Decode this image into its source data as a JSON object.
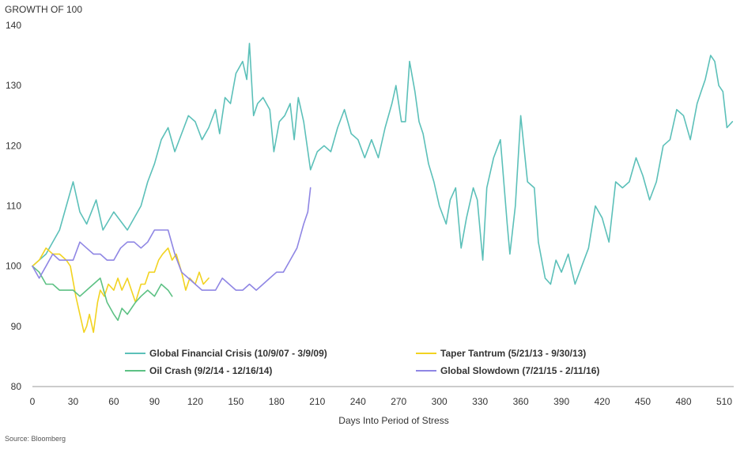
{
  "chart_data": {
    "type": "line",
    "title": "",
    "ylabel": "GROWTH OF 100",
    "xlabel": "Days Into Period of Stress",
    "source": "Source: Bloomberg",
    "xlim": [
      0,
      517
    ],
    "ylim": [
      80,
      140
    ],
    "x_ticks": [
      0,
      30,
      60,
      90,
      120,
      150,
      180,
      210,
      240,
      270,
      300,
      330,
      360,
      390,
      420,
      450,
      480,
      510
    ],
    "y_ticks": [
      80,
      90,
      100,
      110,
      120,
      130,
      140
    ],
    "grid": "none",
    "legend_position": "bottom-center",
    "series": [
      {
        "name": "Global Financial Crisis (10/9/07 - 3/9/09)",
        "color": "#5cc0b9",
        "x": [
          0,
          10,
          20,
          25,
          30,
          35,
          40,
          47,
          52,
          60,
          70,
          80,
          85,
          90,
          95,
          100,
          105,
          110,
          115,
          120,
          125,
          130,
          135,
          138,
          142,
          146,
          150,
          155,
          158,
          160,
          163,
          166,
          170,
          175,
          178,
          182,
          186,
          190,
          193,
          196,
          200,
          205,
          210,
          215,
          220,
          225,
          230,
          235,
          240,
          245,
          250,
          255,
          260,
          265,
          268,
          272,
          275,
          278,
          282,
          285,
          288,
          292,
          296,
          300,
          305,
          308,
          312,
          316,
          320,
          325,
          328,
          332,
          335,
          340,
          345,
          350,
          352,
          356,
          360,
          365,
          370,
          373,
          378,
          382,
          386,
          390,
          395,
          400,
          405,
          410,
          415,
          420,
          425,
          430,
          435,
          440,
          445,
          450,
          455,
          460,
          465,
          470,
          475,
          480,
          485,
          490,
          493,
          496,
          500,
          503,
          506,
          509,
          512,
          516
        ],
        "values": [
          100,
          102,
          106,
          110,
          114,
          109,
          107,
          111,
          106,
          109,
          106,
          110,
          114,
          117,
          121,
          123,
          119,
          122,
          125,
          124,
          121,
          123,
          126,
          122,
          128,
          127,
          132,
          134,
          131,
          137,
          125,
          127,
          128,
          126,
          119,
          124,
          125,
          127,
          121,
          128,
          124,
          116,
          119,
          120,
          119,
          123,
          126,
          122,
          121,
          118,
          121,
          118,
          123,
          127,
          130,
          124,
          124,
          134,
          129,
          124,
          122,
          117,
          114,
          110,
          107,
          111,
          113,
          103,
          108,
          113,
          111,
          101,
          113,
          118,
          121,
          107,
          102,
          110,
          125,
          114,
          113,
          104,
          98,
          97,
          101,
          99,
          102,
          97,
          100,
          103,
          110,
          108,
          104,
          114,
          113,
          114,
          118,
          115,
          111,
          114,
          120,
          121,
          126,
          125,
          121,
          127,
          129,
          131,
          135,
          134,
          130,
          129,
          123,
          124
        ]
      },
      {
        "name": "Taper Tantrum (5/21/13 - 9/30/13)",
        "color": "#f2d321",
        "x": [
          0,
          5,
          10,
          15,
          20,
          25,
          28,
          32,
          35,
          38,
          40,
          42,
          45,
          48,
          50,
          53,
          56,
          60,
          63,
          66,
          70,
          73,
          76,
          80,
          83,
          86,
          90,
          93,
          96,
          100,
          103,
          106,
          110,
          113,
          116,
          120,
          123,
          126,
          130
        ],
        "values": [
          100,
          101,
          103,
          102,
          102,
          101,
          100,
          95,
          92,
          89,
          90,
          92,
          89,
          94,
          96,
          95,
          97,
          96,
          98,
          96,
          98,
          96,
          94,
          97,
          97,
          99,
          99,
          101,
          102,
          103,
          101,
          102,
          99,
          96,
          98,
          97,
          99,
          97,
          98
        ]
      },
      {
        "name": "Oil Crash (9/2/14 - 12/16/14)",
        "color": "#5dc184",
        "x": [
          0,
          5,
          10,
          15,
          20,
          25,
          30,
          35,
          40,
          45,
          50,
          55,
          60,
          63,
          66,
          70,
          73,
          76,
          80,
          85,
          90,
          95,
          100,
          103
        ],
        "values": [
          100,
          99,
          97,
          97,
          96,
          96,
          96,
          95,
          96,
          97,
          98,
          94,
          92,
          91,
          93,
          92,
          93,
          94,
          95,
          96,
          95,
          97,
          96,
          95
        ]
      },
      {
        "name": "Global Slowdown (7/21/15 - 2/11/16)",
        "color": "#8f86e4",
        "x": [
          0,
          5,
          10,
          15,
          20,
          25,
          30,
          35,
          40,
          45,
          50,
          55,
          60,
          65,
          70,
          75,
          80,
          85,
          90,
          95,
          100,
          105,
          110,
          115,
          120,
          125,
          130,
          135,
          140,
          145,
          150,
          155,
          160,
          165,
          170,
          175,
          180,
          185,
          190,
          195,
          200,
          203,
          205
        ],
        "values": [
          100,
          98,
          100,
          102,
          101,
          101,
          101,
          104,
          103,
          102,
          102,
          101,
          101,
          103,
          104,
          104,
          103,
          104,
          106,
          106,
          106,
          102,
          99,
          98,
          97,
          96,
          96,
          96,
          98,
          97,
          96,
          96,
          97,
          96,
          97,
          98,
          99,
          99,
          101,
          103,
          107,
          109,
          113
        ]
      }
    ]
  }
}
